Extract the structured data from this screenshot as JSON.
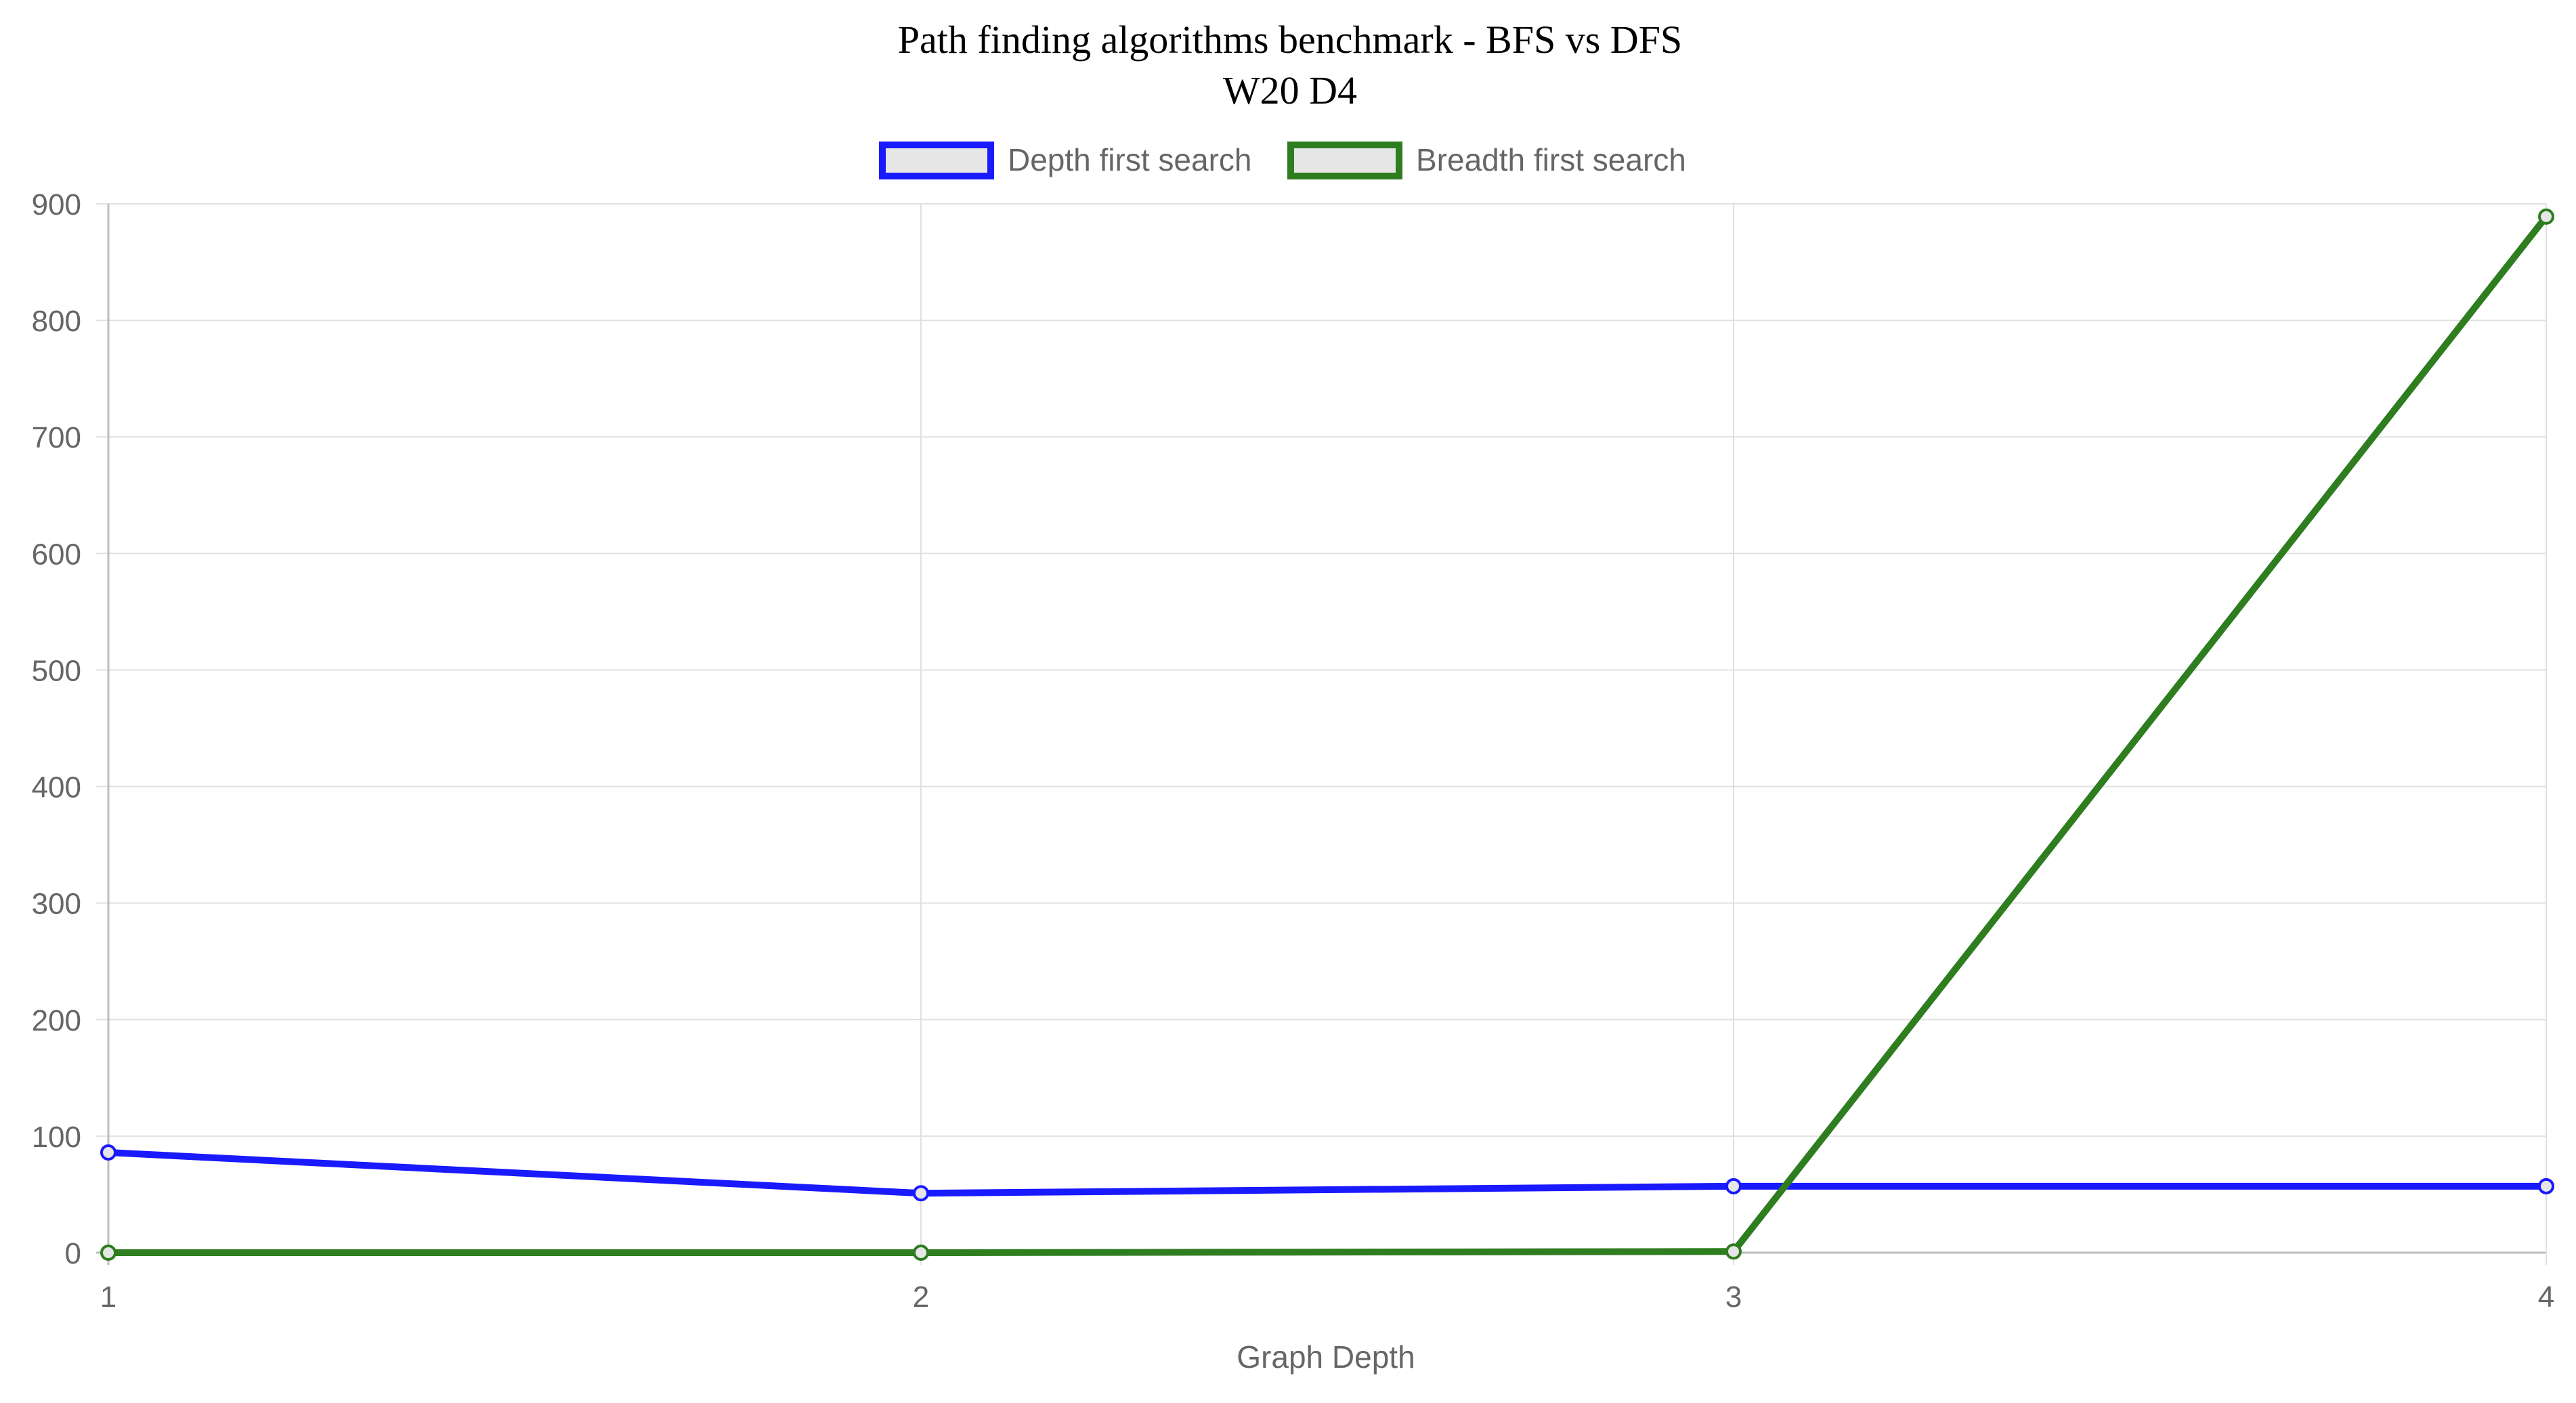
{
  "chart_data": {
    "type": "line",
    "title": "Path finding algorithms benchmark - BFS vs DFS",
    "subtitle": "W20 D4",
    "xlabel": "Graph Depth",
    "ylabel": "",
    "x": [
      1,
      2,
      3,
      4
    ],
    "x_tick_labels": [
      "1",
      "2",
      "3",
      "4"
    ],
    "y_tick_labels": [
      "0",
      "100",
      "200",
      "300",
      "400",
      "500",
      "600",
      "700",
      "800",
      "900"
    ],
    "ylim": [
      0,
      900
    ],
    "grid": true,
    "legend_position": "top-center",
    "series": [
      {
        "name": "Depth first search",
        "color": "#1a1aff",
        "values": [
          86,
          51,
          57,
          57
        ]
      },
      {
        "name": "Breadth first search",
        "color": "#2e7d1f",
        "values": [
          0,
          0,
          1,
          889
        ]
      }
    ]
  }
}
